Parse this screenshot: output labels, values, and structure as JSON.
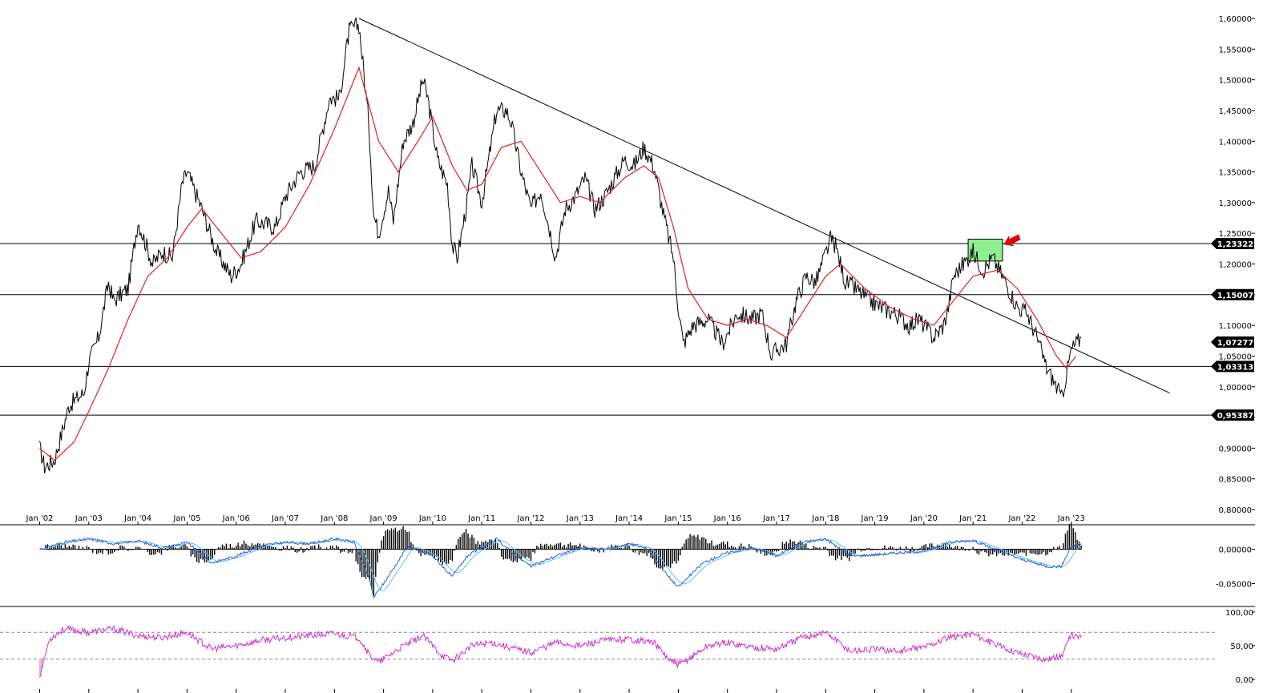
{
  "chart_data": [
    {
      "type": "line",
      "panel": "price",
      "x_tick_labels": [
        "Jan '02",
        "Jan '03",
        "Jan '04",
        "Jan '05",
        "Jan '06",
        "Jan '07",
        "Jan '08",
        "Jan '09",
        "Jan '10",
        "Jan '11",
        "Jan '12",
        "Jan '13",
        "Jan '14",
        "Jan '15",
        "Jan '16",
        "Jan '17",
        "Jan '18",
        "Jan '19",
        "Jan '20",
        "Jan '21",
        "Jan '22",
        "Jan '23"
      ],
      "y_tick_labels": [
        "1,60000",
        "1,55000",
        "1,50000",
        "1,45000",
        "1,40000",
        "1,35000",
        "1,30000",
        "1,25000",
        "1,20000",
        "1,15000",
        "1,10000",
        "1,05000",
        "1,00000",
        "0,95000",
        "0,90000",
        "0,85000",
        "0,80000"
      ],
      "ylim": [
        0.8,
        1.6
      ],
      "price_points": [
        [
          2002.0,
          0.9
        ],
        [
          2002.1,
          0.87
        ],
        [
          2002.3,
          0.88
        ],
        [
          2002.6,
          0.97
        ],
        [
          2002.9,
          0.99
        ],
        [
          2003.0,
          1.04
        ],
        [
          2003.2,
          1.08
        ],
        [
          2003.4,
          1.17
        ],
        [
          2003.5,
          1.14
        ],
        [
          2003.8,
          1.16
        ],
        [
          2004.0,
          1.27
        ],
        [
          2004.3,
          1.2
        ],
        [
          2004.5,
          1.22
        ],
        [
          2004.7,
          1.21
        ],
        [
          2004.9,
          1.33
        ],
        [
          2005.0,
          1.35
        ],
        [
          2005.3,
          1.29
        ],
        [
          2005.6,
          1.22
        ],
        [
          2005.9,
          1.18
        ],
        [
          2006.1,
          1.2
        ],
        [
          2006.4,
          1.27
        ],
        [
          2006.8,
          1.26
        ],
        [
          2007.0,
          1.31
        ],
        [
          2007.3,
          1.35
        ],
        [
          2007.6,
          1.36
        ],
        [
          2007.9,
          1.47
        ],
        [
          2008.1,
          1.47
        ],
        [
          2008.3,
          1.58
        ],
        [
          2008.5,
          1.59
        ],
        [
          2008.7,
          1.43
        ],
        [
          2008.8,
          1.28
        ],
        [
          2008.9,
          1.25
        ],
        [
          2009.1,
          1.32
        ],
        [
          2009.2,
          1.27
        ],
        [
          2009.4,
          1.4
        ],
        [
          2009.6,
          1.43
        ],
        [
          2009.8,
          1.5
        ],
        [
          2009.9,
          1.47
        ],
        [
          2010.1,
          1.37
        ],
        [
          2010.3,
          1.33
        ],
        [
          2010.4,
          1.23
        ],
        [
          2010.5,
          1.21
        ],
        [
          2010.7,
          1.3
        ],
        [
          2010.8,
          1.36
        ],
        [
          2011.0,
          1.3
        ],
        [
          2011.2,
          1.4
        ],
        [
          2011.3,
          1.45
        ],
        [
          2011.5,
          1.45
        ],
        [
          2011.6,
          1.43
        ],
        [
          2011.8,
          1.35
        ],
        [
          2012.0,
          1.29
        ],
        [
          2012.2,
          1.32
        ],
        [
          2012.4,
          1.25
        ],
        [
          2012.5,
          1.21
        ],
        [
          2012.7,
          1.29
        ],
        [
          2012.9,
          1.31
        ],
        [
          2013.1,
          1.34
        ],
        [
          2013.3,
          1.29
        ],
        [
          2013.5,
          1.31
        ],
        [
          2013.7,
          1.34
        ],
        [
          2013.9,
          1.37
        ],
        [
          2014.1,
          1.36
        ],
        [
          2014.3,
          1.39
        ],
        [
          2014.5,
          1.36
        ],
        [
          2014.7,
          1.28
        ],
        [
          2014.9,
          1.21
        ],
        [
          2015.0,
          1.13
        ],
        [
          2015.1,
          1.07
        ],
        [
          2015.3,
          1.1
        ],
        [
          2015.6,
          1.11
        ],
        [
          2015.9,
          1.07
        ],
        [
          2016.2,
          1.12
        ],
        [
          2016.5,
          1.11
        ],
        [
          2016.7,
          1.12
        ],
        [
          2016.9,
          1.05
        ],
        [
          2017.0,
          1.06
        ],
        [
          2017.2,
          1.07
        ],
        [
          2017.4,
          1.14
        ],
        [
          2017.6,
          1.18
        ],
        [
          2017.8,
          1.17
        ],
        [
          2018.1,
          1.24
        ],
        [
          2018.2,
          1.23
        ],
        [
          2018.4,
          1.17
        ],
        [
          2018.6,
          1.16
        ],
        [
          2018.9,
          1.14
        ],
        [
          2019.1,
          1.13
        ],
        [
          2019.4,
          1.12
        ],
        [
          2019.7,
          1.1
        ],
        [
          2019.9,
          1.11
        ],
        [
          2020.2,
          1.08
        ],
        [
          2020.4,
          1.1
        ],
        [
          2020.5,
          1.13
        ],
        [
          2020.6,
          1.18
        ],
        [
          2020.9,
          1.21
        ],
        [
          2021.0,
          1.22
        ],
        [
          2021.2,
          1.19
        ],
        [
          2021.4,
          1.21
        ],
        [
          2021.6,
          1.18
        ],
        [
          2021.9,
          1.13
        ],
        [
          2022.1,
          1.12
        ],
        [
          2022.3,
          1.08
        ],
        [
          2022.5,
          1.03
        ],
        [
          2022.7,
          1.0
        ],
        [
          2022.8,
          0.98
        ],
        [
          2022.9,
          1.02
        ],
        [
          2023.0,
          1.06
        ],
        [
          2023.1,
          1.07
        ],
        [
          2023.2,
          1.08
        ]
      ],
      "moving_average_points": [
        [
          2002.0,
          0.9
        ],
        [
          2002.3,
          0.88
        ],
        [
          2002.7,
          0.91
        ],
        [
          2003.0,
          0.96
        ],
        [
          2003.4,
          1.03
        ],
        [
          2003.8,
          1.11
        ],
        [
          2004.2,
          1.18
        ],
        [
          2004.6,
          1.21
        ],
        [
          2005.0,
          1.26
        ],
        [
          2005.3,
          1.29
        ],
        [
          2005.7,
          1.25
        ],
        [
          2006.1,
          1.21
        ],
        [
          2006.5,
          1.22
        ],
        [
          2007.0,
          1.26
        ],
        [
          2007.5,
          1.33
        ],
        [
          2008.0,
          1.42
        ],
        [
          2008.5,
          1.52
        ],
        [
          2008.9,
          1.4
        ],
        [
          2009.3,
          1.35
        ],
        [
          2009.7,
          1.4
        ],
        [
          2010.0,
          1.44
        ],
        [
          2010.4,
          1.36
        ],
        [
          2010.7,
          1.32
        ],
        [
          2011.0,
          1.33
        ],
        [
          2011.4,
          1.39
        ],
        [
          2011.8,
          1.4
        ],
        [
          2012.2,
          1.35
        ],
        [
          2012.6,
          1.3
        ],
        [
          2013.0,
          1.31
        ],
        [
          2013.4,
          1.3
        ],
        [
          2013.9,
          1.34
        ],
        [
          2014.3,
          1.36
        ],
        [
          2014.6,
          1.34
        ],
        [
          2014.9,
          1.26
        ],
        [
          2015.2,
          1.16
        ],
        [
          2015.6,
          1.11
        ],
        [
          2016.0,
          1.1
        ],
        [
          2016.4,
          1.11
        ],
        [
          2016.8,
          1.1
        ],
        [
          2017.2,
          1.08
        ],
        [
          2017.6,
          1.13
        ],
        [
          2018.0,
          1.18
        ],
        [
          2018.3,
          1.2
        ],
        [
          2018.8,
          1.16
        ],
        [
          2019.3,
          1.13
        ],
        [
          2019.8,
          1.11
        ],
        [
          2020.2,
          1.1
        ],
        [
          2020.6,
          1.14
        ],
        [
          2021.0,
          1.18
        ],
        [
          2021.5,
          1.19
        ],
        [
          2021.9,
          1.16
        ],
        [
          2022.3,
          1.11
        ],
        [
          2022.7,
          1.05
        ],
        [
          2022.9,
          1.03
        ],
        [
          2023.1,
          1.05
        ]
      ],
      "trendline": [
        [
          2008.5,
          1.6
        ],
        [
          2025.0,
          0.99
        ]
      ],
      "horizontal_levels": [
        "1,23322",
        "1,15007",
        "1,03313",
        "0,95387"
      ],
      "current_price_label": "1,07277",
      "current_price": 1.07277,
      "highlight_zone": {
        "x": [
          2020.9,
          2021.6
        ],
        "y": [
          1.21,
          1.23
        ]
      },
      "arrow_annotation": {
        "at": [
          2021.6,
          1.24
        ]
      },
      "colors": {
        "price": "#000000",
        "moving_average": "#e02020",
        "trendline": "#000000",
        "zone": "#90ee90",
        "arrow": "#ee0000"
      }
    },
    {
      "type": "line",
      "panel": "macd",
      "y_tick_labels": [
        "0,00000",
        "-0,05000"
      ],
      "ylim": [
        -0.075,
        0.025
      ],
      "macd_points": [
        [
          2002.0,
          0.0
        ],
        [
          2002.5,
          0.01
        ],
        [
          2003.0,
          0.015
        ],
        [
          2003.5,
          0.008
        ],
        [
          2004.0,
          0.012
        ],
        [
          2004.5,
          0.002
        ],
        [
          2005.0,
          0.01
        ],
        [
          2005.5,
          -0.02
        ],
        [
          2006.0,
          -0.01
        ],
        [
          2006.5,
          0.005
        ],
        [
          2007.0,
          0.01
        ],
        [
          2007.5,
          0.008
        ],
        [
          2008.0,
          0.015
        ],
        [
          2008.4,
          0.01
        ],
        [
          2008.7,
          -0.04
        ],
        [
          2008.8,
          -0.07
        ],
        [
          2009.0,
          -0.05
        ],
        [
          2009.5,
          0.005
        ],
        [
          2010.0,
          -0.01
        ],
        [
          2010.4,
          -0.04
        ],
        [
          2010.7,
          -0.01
        ],
        [
          2011.0,
          0.002
        ],
        [
          2011.3,
          0.015
        ],
        [
          2011.7,
          -0.01
        ],
        [
          2012.0,
          -0.025
        ],
        [
          2012.5,
          -0.01
        ],
        [
          2013.0,
          0.002
        ],
        [
          2013.5,
          0.0
        ],
        [
          2014.0,
          0.008
        ],
        [
          2014.4,
          0.0
        ],
        [
          2014.8,
          -0.04
        ],
        [
          2015.0,
          -0.055
        ],
        [
          2015.5,
          -0.02
        ],
        [
          2016.0,
          -0.005
        ],
        [
          2016.5,
          0.002
        ],
        [
          2017.0,
          -0.01
        ],
        [
          2017.5,
          0.01
        ],
        [
          2018.0,
          0.015
        ],
        [
          2018.5,
          -0.01
        ],
        [
          2019.0,
          -0.008
        ],
        [
          2019.5,
          -0.005
        ],
        [
          2020.0,
          -0.003
        ],
        [
          2020.5,
          0.01
        ],
        [
          2021.0,
          0.013
        ],
        [
          2021.5,
          -0.002
        ],
        [
          2022.0,
          -0.015
        ],
        [
          2022.5,
          -0.025
        ],
        [
          2022.8,
          -0.025
        ],
        [
          2023.0,
          0.005
        ],
        [
          2023.2,
          0.008
        ]
      ],
      "colors": {
        "macd": "#2f5fd0",
        "signal": "#5bc0f0",
        "histogram": "#000000"
      }
    },
    {
      "type": "line",
      "panel": "rsi",
      "y_tick_labels": [
        "100,00",
        "50,00",
        "0,00"
      ],
      "ylim": [
        0,
        100
      ],
      "reference_levels": [
        70,
        30
      ],
      "rsi_points": [
        [
          2002.0,
          5
        ],
        [
          2002.2,
          60
        ],
        [
          2002.5,
          75
        ],
        [
          2003.0,
          70
        ],
        [
          2003.5,
          75
        ],
        [
          2004.0,
          65
        ],
        [
          2004.5,
          62
        ],
        [
          2005.0,
          70
        ],
        [
          2005.5,
          45
        ],
        [
          2006.0,
          50
        ],
        [
          2006.5,
          58
        ],
        [
          2007.0,
          62
        ],
        [
          2007.5,
          65
        ],
        [
          2008.0,
          68
        ],
        [
          2008.5,
          62
        ],
        [
          2008.7,
          38
        ],
        [
          2008.9,
          25
        ],
        [
          2009.3,
          45
        ],
        [
          2009.8,
          65
        ],
        [
          2010.2,
          35
        ],
        [
          2010.4,
          28
        ],
        [
          2010.8,
          50
        ],
        [
          2011.2,
          55
        ],
        [
          2011.7,
          45
        ],
        [
          2012.0,
          40
        ],
        [
          2012.5,
          55
        ],
        [
          2013.0,
          50
        ],
        [
          2013.5,
          58
        ],
        [
          2014.0,
          60
        ],
        [
          2014.5,
          55
        ],
        [
          2014.8,
          30
        ],
        [
          2015.0,
          20
        ],
        [
          2015.3,
          35
        ],
        [
          2015.6,
          50
        ],
        [
          2016.0,
          55
        ],
        [
          2016.5,
          48
        ],
        [
          2017.0,
          45
        ],
        [
          2017.5,
          62
        ],
        [
          2018.0,
          70
        ],
        [
          2018.5,
          42
        ],
        [
          2019.0,
          45
        ],
        [
          2019.5,
          42
        ],
        [
          2020.0,
          48
        ],
        [
          2020.5,
          62
        ],
        [
          2021.0,
          68
        ],
        [
          2021.5,
          50
        ],
        [
          2022.0,
          38
        ],
        [
          2022.5,
          30
        ],
        [
          2022.8,
          35
        ],
        [
          2023.0,
          65
        ],
        [
          2023.2,
          62
        ]
      ],
      "colors": {
        "rsi": "#cc33cc",
        "reference": "#888888",
        "fill": "#f0b0c8"
      }
    }
  ]
}
